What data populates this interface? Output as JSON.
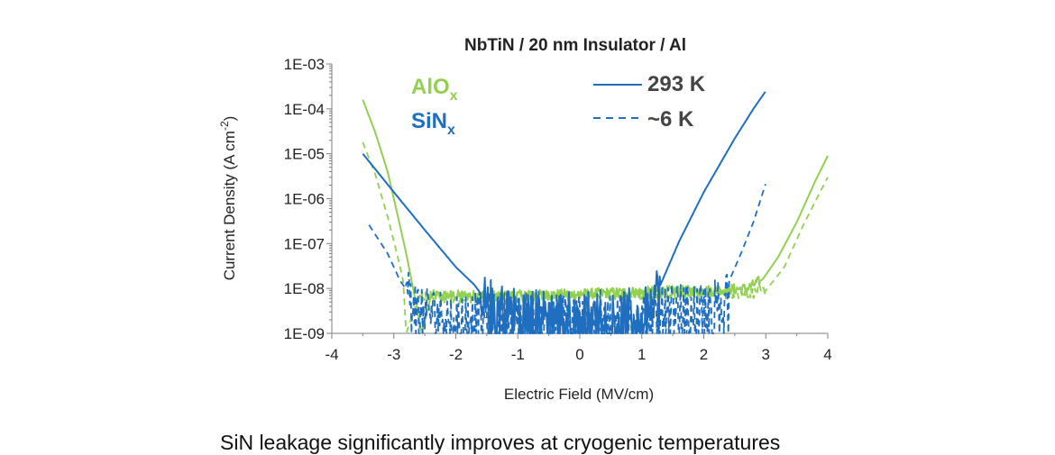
{
  "colors": {
    "alox": "#92D050",
    "sinx": "#1F6EBF",
    "text": "#222222",
    "axis": "#7F7F7F"
  },
  "chart_data": {
    "type": "line",
    "title": "NbTiN / 20 nm Insulator / Al",
    "xlabel": "Electric Field (MV/cm)",
    "ylabel_main": "Current Density (A cm",
    "ylabel_sup": "-2",
    "ylabel_close": ")",
    "xlim": [
      -4,
      4
    ],
    "ylim": [
      1e-09,
      0.001
    ],
    "yscale": "log",
    "x_ticks": [
      "-4",
      "-3",
      "-2",
      "-1",
      "0",
      "1",
      "2",
      "3",
      "4"
    ],
    "y_ticks": [
      "1E-03",
      "1E-04",
      "1E-05",
      "1E-06",
      "1E-07",
      "1E-08",
      "1E-09"
    ],
    "materials": [
      {
        "base": "AlO",
        "sub": "x",
        "color": "#92D050"
      },
      {
        "base": "SiN",
        "sub": "x",
        "color": "#1F6EBF"
      }
    ],
    "linestyle_legend": [
      {
        "label": "293 K",
        "style": "solid"
      },
      {
        "label": "~6 K",
        "style": "dashed"
      }
    ],
    "series": [
      {
        "material": "AlOx",
        "temperature": "293 K",
        "style": "solid",
        "color": "#92D050",
        "points": [
          [
            -3.5,
            0.00016
          ],
          [
            -3.3,
            3e-05
          ],
          [
            -3.1,
            4e-06
          ],
          [
            -2.95,
            5e-07
          ],
          [
            -2.8,
            6e-08
          ],
          [
            -2.7,
            1.2e-08
          ],
          [
            -2.55,
            1e-09
          ],
          [
            -2.4,
            7e-09
          ],
          [
            -2.0,
            7e-09
          ],
          [
            -1.0,
            7e-09
          ],
          [
            0,
            7.5e-09
          ],
          [
            1.0,
            8.5e-09
          ],
          [
            2.0,
            9e-09
          ],
          [
            2.7,
            1e-08
          ],
          [
            2.95,
            1.6e-08
          ],
          [
            3.2,
            5e-08
          ],
          [
            3.5,
            3e-07
          ],
          [
            3.8,
            2.5e-06
          ],
          [
            4.0,
            9e-06
          ]
        ],
        "noise_range": [
          -2.4,
          2.9
        ]
      },
      {
        "material": "AlOx",
        "temperature": "~6 K",
        "style": "dashed",
        "color": "#92D050",
        "points": [
          [
            -3.5,
            1.8e-05
          ],
          [
            -3.3,
            3.5e-06
          ],
          [
            -3.1,
            4e-07
          ],
          [
            -2.95,
            6e-08
          ],
          [
            -2.85,
            1.5e-08
          ],
          [
            -2.8,
            1e-09
          ],
          [
            -2.6,
            7e-09
          ],
          [
            -2.0,
            6e-09
          ],
          [
            0,
            7e-09
          ],
          [
            2.0,
            7.5e-09
          ],
          [
            2.8,
            8e-09
          ],
          [
            3.0,
            9e-09
          ],
          [
            3.3,
            3e-08
          ],
          [
            3.6,
            2.5e-07
          ],
          [
            3.85,
            1.2e-06
          ],
          [
            4.0,
            3e-06
          ]
        ],
        "noise_range": [
          -2.6,
          3.0
        ]
      },
      {
        "material": "SiNx",
        "temperature": "293 K",
        "style": "solid",
        "color": "#1F6EBF",
        "points": [
          [
            -3.5,
            1e-05
          ],
          [
            -3.0,
            1.4e-06
          ],
          [
            -2.5,
            2e-07
          ],
          [
            -2.0,
            3e-08
          ],
          [
            -1.7,
            1.2e-08
          ],
          [
            -1.5,
            5e-09
          ],
          [
            -1.0,
            3e-09
          ],
          [
            0,
            2.5e-09
          ],
          [
            1.0,
            3e-09
          ],
          [
            1.3,
            1.2e-08
          ],
          [
            1.6,
            1.1e-07
          ],
          [
            2.0,
            1.4e-06
          ],
          [
            2.5,
            2.2e-05
          ],
          [
            2.8,
            0.0001
          ],
          [
            3.0,
            0.00025
          ]
        ],
        "noise_range": [
          -1.6,
          1.3
        ]
      },
      {
        "material": "SiNx",
        "temperature": "~6 K",
        "style": "dashed",
        "color": "#1F6EBF",
        "points": [
          [
            -3.4,
            2.6e-07
          ],
          [
            -3.1,
            6e-08
          ],
          [
            -2.9,
            1.5e-08
          ],
          [
            -2.7,
            6e-09
          ],
          [
            -2.4,
            3e-09
          ],
          [
            -2.0,
            2.5e-09
          ],
          [
            0,
            2.5e-09
          ],
          [
            1.0,
            3e-09
          ],
          [
            2.0,
            4e-09
          ],
          [
            2.3,
            6e-09
          ],
          [
            2.45,
            2e-08
          ],
          [
            2.6,
            6e-08
          ],
          [
            2.8,
            3e-07
          ],
          [
            3.0,
            2.2e-06
          ]
        ],
        "noise_range": [
          -2.8,
          2.4
        ]
      }
    ]
  },
  "caption": "SiN leakage significantly improves at cryogenic temperatures"
}
